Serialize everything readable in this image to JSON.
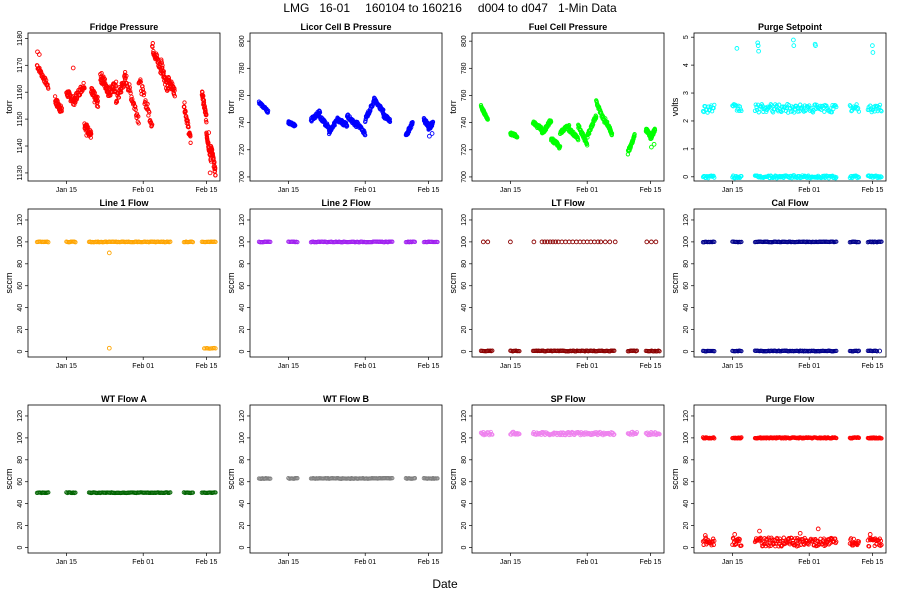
{
  "figure": {
    "title_parts": [
      "LMG",
      "16-01",
      "160104 to 160216",
      "d004 to d047",
      "1-Min Data"
    ],
    "xlabel": "Date"
  },
  "chart_data": [
    {
      "type": "scatter",
      "title": "Fridge Pressure",
      "ylabel": "torr",
      "color": "#ff0000",
      "ylim": [
        1127,
        1182
      ],
      "yticks": [
        1130,
        1140,
        1150,
        1160,
        1170,
        1180
      ],
      "xticks": [
        "Jan 15",
        "Feb 01",
        "Feb 15"
      ],
      "segments": [
        [
          4.5,
          7,
          1170,
          1162,
          2
        ],
        [
          8.5,
          10,
          1157,
          1153,
          3
        ],
        [
          11,
          13,
          1160,
          1156,
          3
        ],
        [
          13,
          15,
          1158,
          1163,
          3
        ],
        [
          15,
          16.5,
          1148,
          1144,
          3
        ],
        [
          16.5,
          18,
          1160,
          1156,
          4
        ],
        [
          18.5,
          20,
          1166,
          1162,
          4
        ],
        [
          20,
          22,
          1160,
          1162,
          4
        ],
        [
          22,
          24,
          1157,
          1165,
          4
        ],
        [
          24,
          27,
          1166,
          1150,
          4
        ],
        [
          27,
          30,
          1165,
          1148,
          4
        ],
        [
          30,
          32,
          1177,
          1168,
          4
        ],
        [
          32,
          33.5,
          1171,
          1160,
          4
        ],
        [
          33.5,
          35,
          1165,
          1160,
          3
        ],
        [
          37,
          38.5,
          1156,
          1142,
          3
        ],
        [
          41,
          42,
          1160,
          1150,
          3
        ],
        [
          42,
          43,
          1145,
          1135,
          3
        ],
        [
          43,
          44,
          1140,
          1130,
          3
        ]
      ],
      "points": [
        [
          4.6,
          1175
        ],
        [
          5,
          1174
        ],
        [
          15.5,
          1144
        ],
        [
          12.5,
          1169
        ],
        [
          42.5,
          1145
        ],
        [
          42.8,
          1130
        ]
      ]
    },
    {
      "type": "scatter",
      "title": "Licor Cell B Pressure",
      "ylabel": "torr",
      "color": "#0000ff",
      "ylim": [
        697,
        806
      ],
      "yticks": [
        700,
        720,
        740,
        760,
        780,
        800
      ],
      "xticks": [
        "Jan 15",
        "Feb 01",
        "Feb 15"
      ],
      "segments": [
        [
          4.5,
          6.5,
          755,
          748,
          2
        ],
        [
          11,
          12.5,
          740,
          738,
          2
        ],
        [
          16,
          18,
          742,
          748,
          3
        ],
        [
          18,
          20,
          744,
          736,
          3
        ],
        [
          20,
          22,
          732,
          744,
          3
        ],
        [
          22,
          24,
          742,
          738,
          3
        ],
        [
          24,
          26,
          745,
          738,
          3
        ],
        [
          26,
          28,
          740,
          732,
          3
        ],
        [
          28,
          30,
          742,
          756,
          3
        ],
        [
          30,
          32,
          757,
          748,
          3
        ],
        [
          32,
          33.5,
          745,
          742,
          3
        ],
        [
          37,
          38.5,
          730,
          740,
          3
        ],
        [
          41,
          42,
          742,
          738,
          3
        ],
        [
          42,
          43,
          735,
          740,
          3
        ]
      ],
      "points": [
        [
          42.2,
          730
        ],
        [
          42.8,
          732
        ]
      ]
    },
    {
      "type": "scatter",
      "title": "Fuel Cell Pressure",
      "ylabel": "torr",
      "color": "#00ff00",
      "ylim": [
        697,
        806
      ],
      "yticks": [
        700,
        720,
        740,
        760,
        780,
        800
      ],
      "xticks": [
        "Jan 15",
        "Feb 01",
        "Feb 15"
      ],
      "segments": [
        [
          4.5,
          6,
          752,
          742,
          2
        ],
        [
          11,
          12.5,
          732,
          730,
          2
        ],
        [
          16,
          18,
          740,
          735,
          3
        ],
        [
          18,
          20,
          732,
          742,
          3
        ],
        [
          20,
          22,
          728,
          722,
          3
        ],
        [
          22,
          24,
          732,
          738,
          3
        ],
        [
          24,
          26,
          735,
          728,
          3
        ],
        [
          26,
          28,
          738,
          724,
          3
        ],
        [
          28,
          30,
          730,
          745,
          3
        ],
        [
          30,
          32,
          755,
          740,
          3
        ],
        [
          32,
          33.5,
          742,
          732,
          3
        ],
        [
          37,
          38.5,
          718,
          730,
          3
        ],
        [
          41,
          42,
          735,
          730,
          3
        ],
        [
          42,
          43,
          728,
          735,
          3
        ]
      ],
      "points": [
        [
          42.2,
          722
        ],
        [
          42.8,
          724
        ]
      ]
    },
    {
      "type": "scatter",
      "title": "Purge Setpoint",
      "ylabel": "volts",
      "color": "#00ffff",
      "ylim": [
        -0.15,
        5.15
      ],
      "yticks": [
        0,
        1,
        2,
        3,
        4,
        5
      ],
      "xticks": [
        "Jan 15",
        "Feb 01",
        "Feb 15"
      ],
      "bands": [
        [
          4.5,
          7,
          2.45,
          0.15,
          6
        ],
        [
          11,
          13,
          2.45,
          0.15,
          6
        ],
        [
          16,
          34,
          2.45,
          0.15,
          6
        ],
        [
          37,
          39,
          2.45,
          0.15,
          6
        ],
        [
          41,
          44,
          2.45,
          0.15,
          6
        ],
        [
          4.5,
          7,
          0,
          0.05,
          6
        ],
        [
          11,
          13,
          0,
          0.05,
          6
        ],
        [
          16,
          34,
          0,
          0.05,
          6
        ],
        [
          37,
          39,
          0,
          0.05,
          6
        ],
        [
          41,
          44,
          0,
          0.05,
          6
        ]
      ],
      "points": [
        [
          12,
          4.6
        ],
        [
          16.6,
          4.8
        ],
        [
          16.7,
          4.7
        ],
        [
          16.8,
          4.5
        ],
        [
          24.5,
          4.9
        ],
        [
          24.6,
          4.7
        ],
        [
          29.3,
          4.75
        ],
        [
          29.4,
          4.7
        ],
        [
          42,
          4.7
        ],
        [
          42.1,
          4.45
        ]
      ]
    },
    {
      "type": "scatter",
      "title": "Line 1 Flow",
      "ylabel": "sccm",
      "color": "#ffa500",
      "ylim": [
        -5,
        130
      ],
      "yticks": [
        0,
        20,
        40,
        60,
        80,
        100,
        120
      ],
      "xticks": [
        "Jan 15",
        "Feb 01",
        "Feb 15"
      ],
      "bands": [
        [
          4.5,
          7,
          100,
          0.3,
          4
        ],
        [
          11,
          13,
          100,
          0.3,
          4
        ],
        [
          16,
          34,
          100,
          0.3,
          4
        ],
        [
          37,
          39,
          100,
          0.3,
          4
        ],
        [
          41,
          44,
          100,
          0.3,
          4
        ],
        [
          41.5,
          44,
          3,
          0.3,
          3
        ]
      ],
      "points": [
        [
          20.5,
          90
        ],
        [
          20.5,
          3
        ]
      ]
    },
    {
      "type": "scatter",
      "title": "Line 2 Flow",
      "ylabel": "sccm",
      "color": "#a020f0",
      "ylim": [
        -5,
        130
      ],
      "yticks": [
        0,
        20,
        40,
        60,
        80,
        100,
        120
      ],
      "xticks": [
        "Jan 15",
        "Feb 01",
        "Feb 15"
      ],
      "bands": [
        [
          4.5,
          7,
          100,
          0.3,
          4
        ],
        [
          11,
          13,
          100,
          0.3,
          4
        ],
        [
          16,
          34,
          100,
          0.3,
          4
        ],
        [
          37,
          39,
          100,
          0.3,
          4
        ],
        [
          41,
          44,
          100,
          0.3,
          4
        ]
      ],
      "points": []
    },
    {
      "type": "scatter",
      "title": "LT Flow",
      "ylabel": "sccm",
      "color": "#8b0000",
      "ylim": [
        -5,
        130
      ],
      "yticks": [
        0,
        20,
        40,
        60,
        80,
        100,
        120
      ],
      "xticks": [
        "Jan 15",
        "Feb 01",
        "Feb 15"
      ],
      "bands": [
        [
          4.5,
          7,
          0.5,
          0.3,
          4
        ],
        [
          11,
          13,
          0.5,
          0.3,
          4
        ],
        [
          16,
          34,
          0.5,
          0.3,
          4
        ],
        [
          37,
          39,
          0.5,
          0.3,
          4
        ],
        [
          41,
          44,
          0.5,
          0.3,
          4
        ]
      ],
      "points": [
        [
          5,
          100
        ],
        [
          6,
          100
        ],
        [
          11,
          100
        ],
        [
          16.2,
          100
        ],
        [
          18,
          100
        ],
        [
          18.6,
          100
        ],
        [
          19.2,
          100
        ],
        [
          19.8,
          100
        ],
        [
          20.4,
          100
        ],
        [
          21,
          100
        ],
        [
          21.6,
          100
        ],
        [
          22.4,
          100
        ],
        [
          23.2,
          100
        ],
        [
          24,
          100
        ],
        [
          24.8,
          100
        ],
        [
          25.6,
          100
        ],
        [
          26.4,
          100
        ],
        [
          27.2,
          100
        ],
        [
          28,
          100
        ],
        [
          28.8,
          100
        ],
        [
          29.6,
          100
        ],
        [
          30.4,
          100
        ],
        [
          31,
          100
        ],
        [
          32,
          100
        ],
        [
          33,
          100
        ],
        [
          34.2,
          100
        ],
        [
          41.2,
          100
        ],
        [
          42.2,
          100
        ],
        [
          43.2,
          100
        ]
      ]
    },
    {
      "type": "scatter",
      "title": "Cal Flow",
      "ylabel": "sccm",
      "color": "#00008b",
      "ylim": [
        -5,
        130
      ],
      "yticks": [
        0,
        20,
        40,
        60,
        80,
        100,
        120
      ],
      "xticks": [
        "Jan 15",
        "Feb 01",
        "Feb 15"
      ],
      "bands": [
        [
          4.5,
          7,
          100,
          0.3,
          4
        ],
        [
          11,
          13,
          100,
          0.3,
          4
        ],
        [
          16,
          34,
          100,
          0.3,
          4
        ],
        [
          37,
          39,
          100,
          0.3,
          4
        ],
        [
          41,
          44,
          100,
          0.3,
          4
        ],
        [
          4.5,
          7,
          0.5,
          0.3,
          4
        ],
        [
          11,
          13,
          0.5,
          0.3,
          4
        ],
        [
          16,
          34,
          0.5,
          0.3,
          4
        ],
        [
          37,
          39,
          0.5,
          0.3,
          4
        ],
        [
          41,
          43,
          0.5,
          0.3,
          4
        ]
      ],
      "points": [
        [
          43.6,
          0.5
        ]
      ]
    },
    {
      "type": "scatter",
      "title": "WT Flow A",
      "ylabel": "sccm",
      "color": "#006400",
      "ylim": [
        -5,
        130
      ],
      "yticks": [
        0,
        20,
        40,
        60,
        80,
        100,
        120
      ],
      "xticks": [
        "Jan 15",
        "Feb 01",
        "Feb 15"
      ],
      "bands": [
        [
          4.5,
          7,
          50,
          0.3,
          4
        ],
        [
          11,
          13,
          50,
          0.3,
          4
        ],
        [
          16,
          34,
          50,
          0.3,
          4
        ],
        [
          37,
          39,
          50,
          0.3,
          4
        ],
        [
          41,
          44,
          50,
          0.3,
          4
        ]
      ],
      "points": []
    },
    {
      "type": "scatter",
      "title": "WT Flow B",
      "ylabel": "sccm",
      "color": "#808080",
      "ylim": [
        -5,
        130
      ],
      "yticks": [
        0,
        20,
        40,
        60,
        80,
        100,
        120
      ],
      "xticks": [
        "Jan 15",
        "Feb 01",
        "Feb 15"
      ],
      "bands": [
        [
          4.5,
          7,
          63,
          0.3,
          4
        ],
        [
          11,
          13,
          63,
          0.3,
          4
        ],
        [
          16,
          34,
          63,
          0.3,
          4
        ],
        [
          37,
          39,
          63,
          0.3,
          4
        ],
        [
          41,
          44,
          63,
          0.3,
          4
        ]
      ],
      "points": []
    },
    {
      "type": "scatter",
      "title": "SP Flow",
      "ylabel": "sccm",
      "color": "#ee82ee",
      "ylim": [
        -5,
        130
      ],
      "yticks": [
        0,
        20,
        40,
        60,
        80,
        100,
        120
      ],
      "xticks": [
        "Jan 15",
        "Feb 01",
        "Feb 15"
      ],
      "bands": [
        [
          4.5,
          7,
          104,
          1.5,
          6
        ],
        [
          11,
          13,
          104,
          1.5,
          6
        ],
        [
          16,
          34,
          104,
          1.5,
          6
        ],
        [
          37,
          39,
          104,
          1.5,
          6
        ],
        [
          41,
          44,
          104,
          1.5,
          6
        ]
      ],
      "points": []
    },
    {
      "type": "scatter",
      "title": "Purge Flow",
      "ylabel": "sccm",
      "color": "#ff0000",
      "ylim": [
        -5,
        130
      ],
      "yticks": [
        0,
        20,
        40,
        60,
        80,
        100,
        120
      ],
      "xticks": [
        "Jan 15",
        "Feb 01",
        "Feb 15"
      ],
      "bands": [
        [
          4.5,
          7,
          100,
          0.5,
          6
        ],
        [
          11,
          13,
          100,
          0.5,
          6
        ],
        [
          16,
          34,
          100,
          0.5,
          6
        ],
        [
          37,
          39,
          100,
          0.5,
          6
        ],
        [
          41,
          44,
          100,
          0.5,
          6
        ],
        [
          4.5,
          7,
          5,
          4,
          8
        ],
        [
          11,
          13,
          5,
          4,
          8
        ],
        [
          16,
          34,
          5,
          4,
          8
        ],
        [
          37,
          39,
          5,
          4,
          8
        ],
        [
          41,
          44,
          5,
          4,
          8
        ]
      ],
      "points": [
        [
          5,
          11
        ],
        [
          11.5,
          12
        ],
        [
          17,
          15
        ],
        [
          26,
          13
        ],
        [
          30,
          17
        ],
        [
          41.5,
          12
        ]
      ]
    }
  ]
}
